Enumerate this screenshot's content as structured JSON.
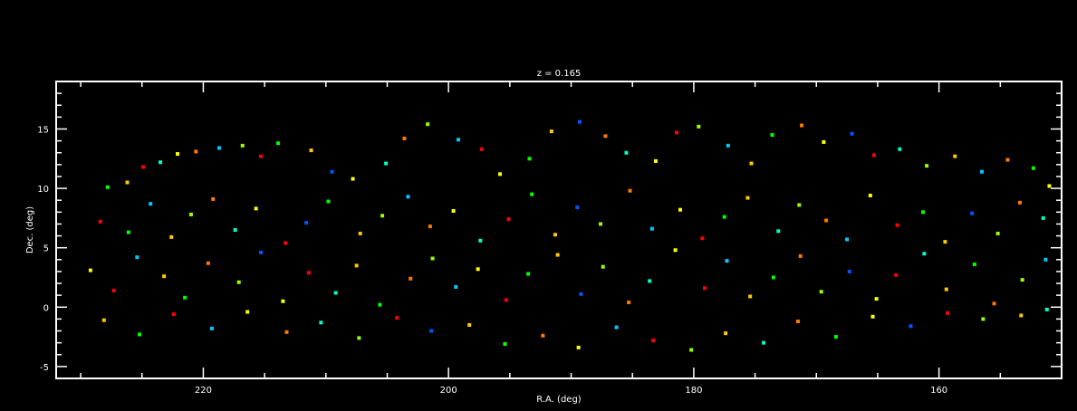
{
  "chart_data": {
    "type": "scatter",
    "title": "z = 0.165",
    "xlabel": "R.A. (deg)",
    "ylabel": "Dec. (deg)",
    "xlim": [
      232,
      150
    ],
    "ylim": [
      -6,
      19
    ],
    "x_ticks": [
      220,
      200,
      180,
      160
    ],
    "y_ticks": [
      -5,
      0,
      5,
      10,
      15
    ],
    "grid": false,
    "background": "#000000",
    "colors": [
      "#0000ff",
      "#0055ff",
      "#00c8ff",
      "#00ffc8",
      "#00ff00",
      "#96ff00",
      "#ffff00",
      "#ffc800",
      "#ff7800",
      "#ff0000"
    ],
    "points": [
      [
        227.8,
        10.1,
        4
      ],
      [
        226.2,
        10.5,
        7
      ],
      [
        224.9,
        11.8,
        9
      ],
      [
        223.5,
        12.2,
        3
      ],
      [
        222.1,
        12.9,
        6
      ],
      [
        220.6,
        13.1,
        8
      ],
      [
        218.7,
        13.4,
        2
      ],
      [
        216.8,
        13.6,
        5
      ],
      [
        215.3,
        12.7,
        9
      ],
      [
        213.9,
        13.8,
        4
      ],
      [
        211.2,
        13.2,
        7
      ],
      [
        209.5,
        11.4,
        1
      ],
      [
        207.8,
        10.8,
        6
      ],
      [
        205.1,
        12.1,
        3
      ],
      [
        203.6,
        14.2,
        8
      ],
      [
        201.7,
        15.4,
        5
      ],
      [
        199.2,
        14.1,
        2
      ],
      [
        197.3,
        13.3,
        9
      ],
      [
        195.8,
        11.2,
        6
      ],
      [
        193.4,
        12.5,
        4
      ],
      [
        191.6,
        14.8,
        7
      ],
      [
        189.3,
        15.6,
        1
      ],
      [
        187.2,
        14.4,
        8
      ],
      [
        185.5,
        13.0,
        3
      ],
      [
        183.1,
        12.3,
        6
      ],
      [
        181.4,
        14.7,
        9
      ],
      [
        179.6,
        15.2,
        5
      ],
      [
        177.2,
        13.6,
        2
      ],
      [
        175.3,
        12.1,
        7
      ],
      [
        173.6,
        14.5,
        4
      ],
      [
        171.2,
        15.3,
        8
      ],
      [
        169.4,
        13.9,
        6
      ],
      [
        167.1,
        14.6,
        1
      ],
      [
        165.3,
        12.8,
        9
      ],
      [
        163.2,
        13.3,
        3
      ],
      [
        161.0,
        11.9,
        5
      ],
      [
        158.7,
        12.7,
        7
      ],
      [
        156.5,
        11.4,
        2
      ],
      [
        154.4,
        12.4,
        8
      ],
      [
        152.3,
        11.7,
        4
      ],
      [
        151.0,
        10.2,
        6
      ],
      [
        228.4,
        7.2,
        9
      ],
      [
        226.1,
        6.3,
        4
      ],
      [
        224.3,
        8.7,
        2
      ],
      [
        222.6,
        5.9,
        7
      ],
      [
        221.0,
        7.8,
        5
      ],
      [
        219.2,
        9.1,
        8
      ],
      [
        217.4,
        6.5,
        3
      ],
      [
        215.7,
        8.3,
        6
      ],
      [
        213.3,
        5.4,
        9
      ],
      [
        211.6,
        7.1,
        1
      ],
      [
        209.8,
        8.9,
        4
      ],
      [
        207.2,
        6.2,
        7
      ],
      [
        205.4,
        7.7,
        5
      ],
      [
        203.3,
        9.3,
        2
      ],
      [
        201.5,
        6.8,
        8
      ],
      [
        199.6,
        8.1,
        6
      ],
      [
        197.4,
        5.6,
        3
      ],
      [
        195.1,
        7.4,
        9
      ],
      [
        193.2,
        9.5,
        4
      ],
      [
        191.3,
        6.1,
        7
      ],
      [
        189.5,
        8.4,
        1
      ],
      [
        187.6,
        7.0,
        5
      ],
      [
        185.2,
        9.8,
        8
      ],
      [
        183.4,
        6.6,
        2
      ],
      [
        181.1,
        8.2,
        6
      ],
      [
        179.3,
        5.8,
        9
      ],
      [
        177.5,
        7.6,
        4
      ],
      [
        175.6,
        9.2,
        7
      ],
      [
        173.1,
        6.4,
        3
      ],
      [
        171.4,
        8.6,
        5
      ],
      [
        169.2,
        7.3,
        8
      ],
      [
        167.5,
        5.7,
        2
      ],
      [
        165.6,
        9.4,
        6
      ],
      [
        163.4,
        6.9,
        9
      ],
      [
        161.3,
        8.0,
        4
      ],
      [
        159.5,
        5.5,
        7
      ],
      [
        157.3,
        7.9,
        1
      ],
      [
        155.2,
        6.2,
        5
      ],
      [
        153.4,
        8.8,
        8
      ],
      [
        151.5,
        7.5,
        3
      ],
      [
        229.2,
        3.1,
        6
      ],
      [
        227.3,
        1.4,
        9
      ],
      [
        225.4,
        4.2,
        2
      ],
      [
        223.2,
        2.6,
        7
      ],
      [
        221.5,
        0.8,
        4
      ],
      [
        219.6,
        3.7,
        8
      ],
      [
        217.1,
        2.1,
        5
      ],
      [
        215.3,
        4.6,
        1
      ],
      [
        213.5,
        0.5,
        6
      ],
      [
        211.4,
        2.9,
        9
      ],
      [
        209.2,
        1.2,
        3
      ],
      [
        207.5,
        3.5,
        7
      ],
      [
        205.6,
        0.2,
        4
      ],
      [
        203.1,
        2.4,
        8
      ],
      [
        201.3,
        4.1,
        5
      ],
      [
        199.4,
        1.7,
        2
      ],
      [
        197.6,
        3.2,
        6
      ],
      [
        195.3,
        0.6,
        9
      ],
      [
        193.5,
        2.8,
        4
      ],
      [
        191.1,
        4.4,
        7
      ],
      [
        189.2,
        1.1,
        1
      ],
      [
        187.4,
        3.4,
        5
      ],
      [
        185.3,
        0.4,
        8
      ],
      [
        183.6,
        2.2,
        3
      ],
      [
        181.5,
        4.8,
        6
      ],
      [
        179.1,
        1.6,
        9
      ],
      [
        177.3,
        3.9,
        2
      ],
      [
        175.4,
        0.9,
        7
      ],
      [
        173.5,
        2.5,
        4
      ],
      [
        171.3,
        4.3,
        8
      ],
      [
        169.6,
        1.3,
        5
      ],
      [
        167.3,
        3.0,
        1
      ],
      [
        165.1,
        0.7,
        6
      ],
      [
        163.5,
        2.7,
        9
      ],
      [
        161.2,
        4.5,
        3
      ],
      [
        159.4,
        1.5,
        7
      ],
      [
        157.1,
        3.6,
        4
      ],
      [
        155.5,
        0.3,
        8
      ],
      [
        153.2,
        2.3,
        5
      ],
      [
        151.3,
        4.0,
        2
      ],
      [
        228.1,
        -1.1,
        7
      ],
      [
        225.2,
        -2.3,
        4
      ],
      [
        222.4,
        -0.6,
        9
      ],
      [
        219.3,
        -1.8,
        2
      ],
      [
        216.4,
        -0.4,
        6
      ],
      [
        213.2,
        -2.1,
        8
      ],
      [
        210.4,
        -1.3,
        3
      ],
      [
        207.3,
        -2.6,
        5
      ],
      [
        204.2,
        -0.9,
        9
      ],
      [
        201.4,
        -2.0,
        1
      ],
      [
        198.3,
        -1.5,
        7
      ],
      [
        195.4,
        -3.1,
        4
      ],
      [
        192.3,
        -2.4,
        8
      ],
      [
        189.4,
        -3.4,
        6
      ],
      [
        186.3,
        -1.7,
        2
      ],
      [
        183.3,
        -2.8,
        9
      ],
      [
        180.2,
        -3.6,
        5
      ],
      [
        177.4,
        -2.2,
        7
      ],
      [
        174.3,
        -3.0,
        3
      ],
      [
        171.5,
        -1.2,
        8
      ],
      [
        168.4,
        -2.5,
        4
      ],
      [
        165.4,
        -0.8,
        6
      ],
      [
        162.3,
        -1.6,
        1
      ],
      [
        159.3,
        -0.5,
        9
      ],
      [
        156.4,
        -1.0,
        5
      ],
      [
        153.3,
        -0.7,
        7
      ],
      [
        151.2,
        -0.2,
        3
      ]
    ]
  }
}
